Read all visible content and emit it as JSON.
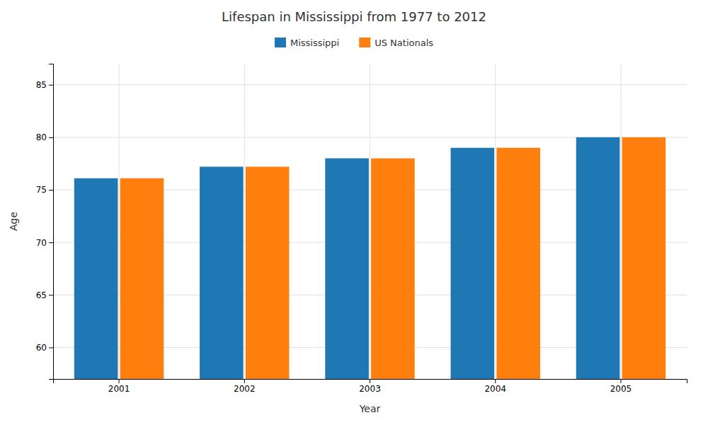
{
  "chart_data": {
    "type": "bar",
    "title": "Lifespan in Mississippi from 1977 to 2012",
    "xlabel": "Year",
    "ylabel": "Age",
    "categories": [
      "2001",
      "2002",
      "2003",
      "2004",
      "2005"
    ],
    "series": [
      {
        "name": "Mississippi",
        "values": [
          76.1,
          77.2,
          78.0,
          79.0,
          80.0
        ]
      },
      {
        "name": "US Nationals",
        "values": [
          76.1,
          77.2,
          78.0,
          79.0,
          80.0
        ]
      }
    ],
    "ylim": [
      57,
      87
    ],
    "yticks": [
      60,
      65,
      70,
      75,
      80,
      85
    ],
    "grid": true,
    "legend": "top"
  }
}
